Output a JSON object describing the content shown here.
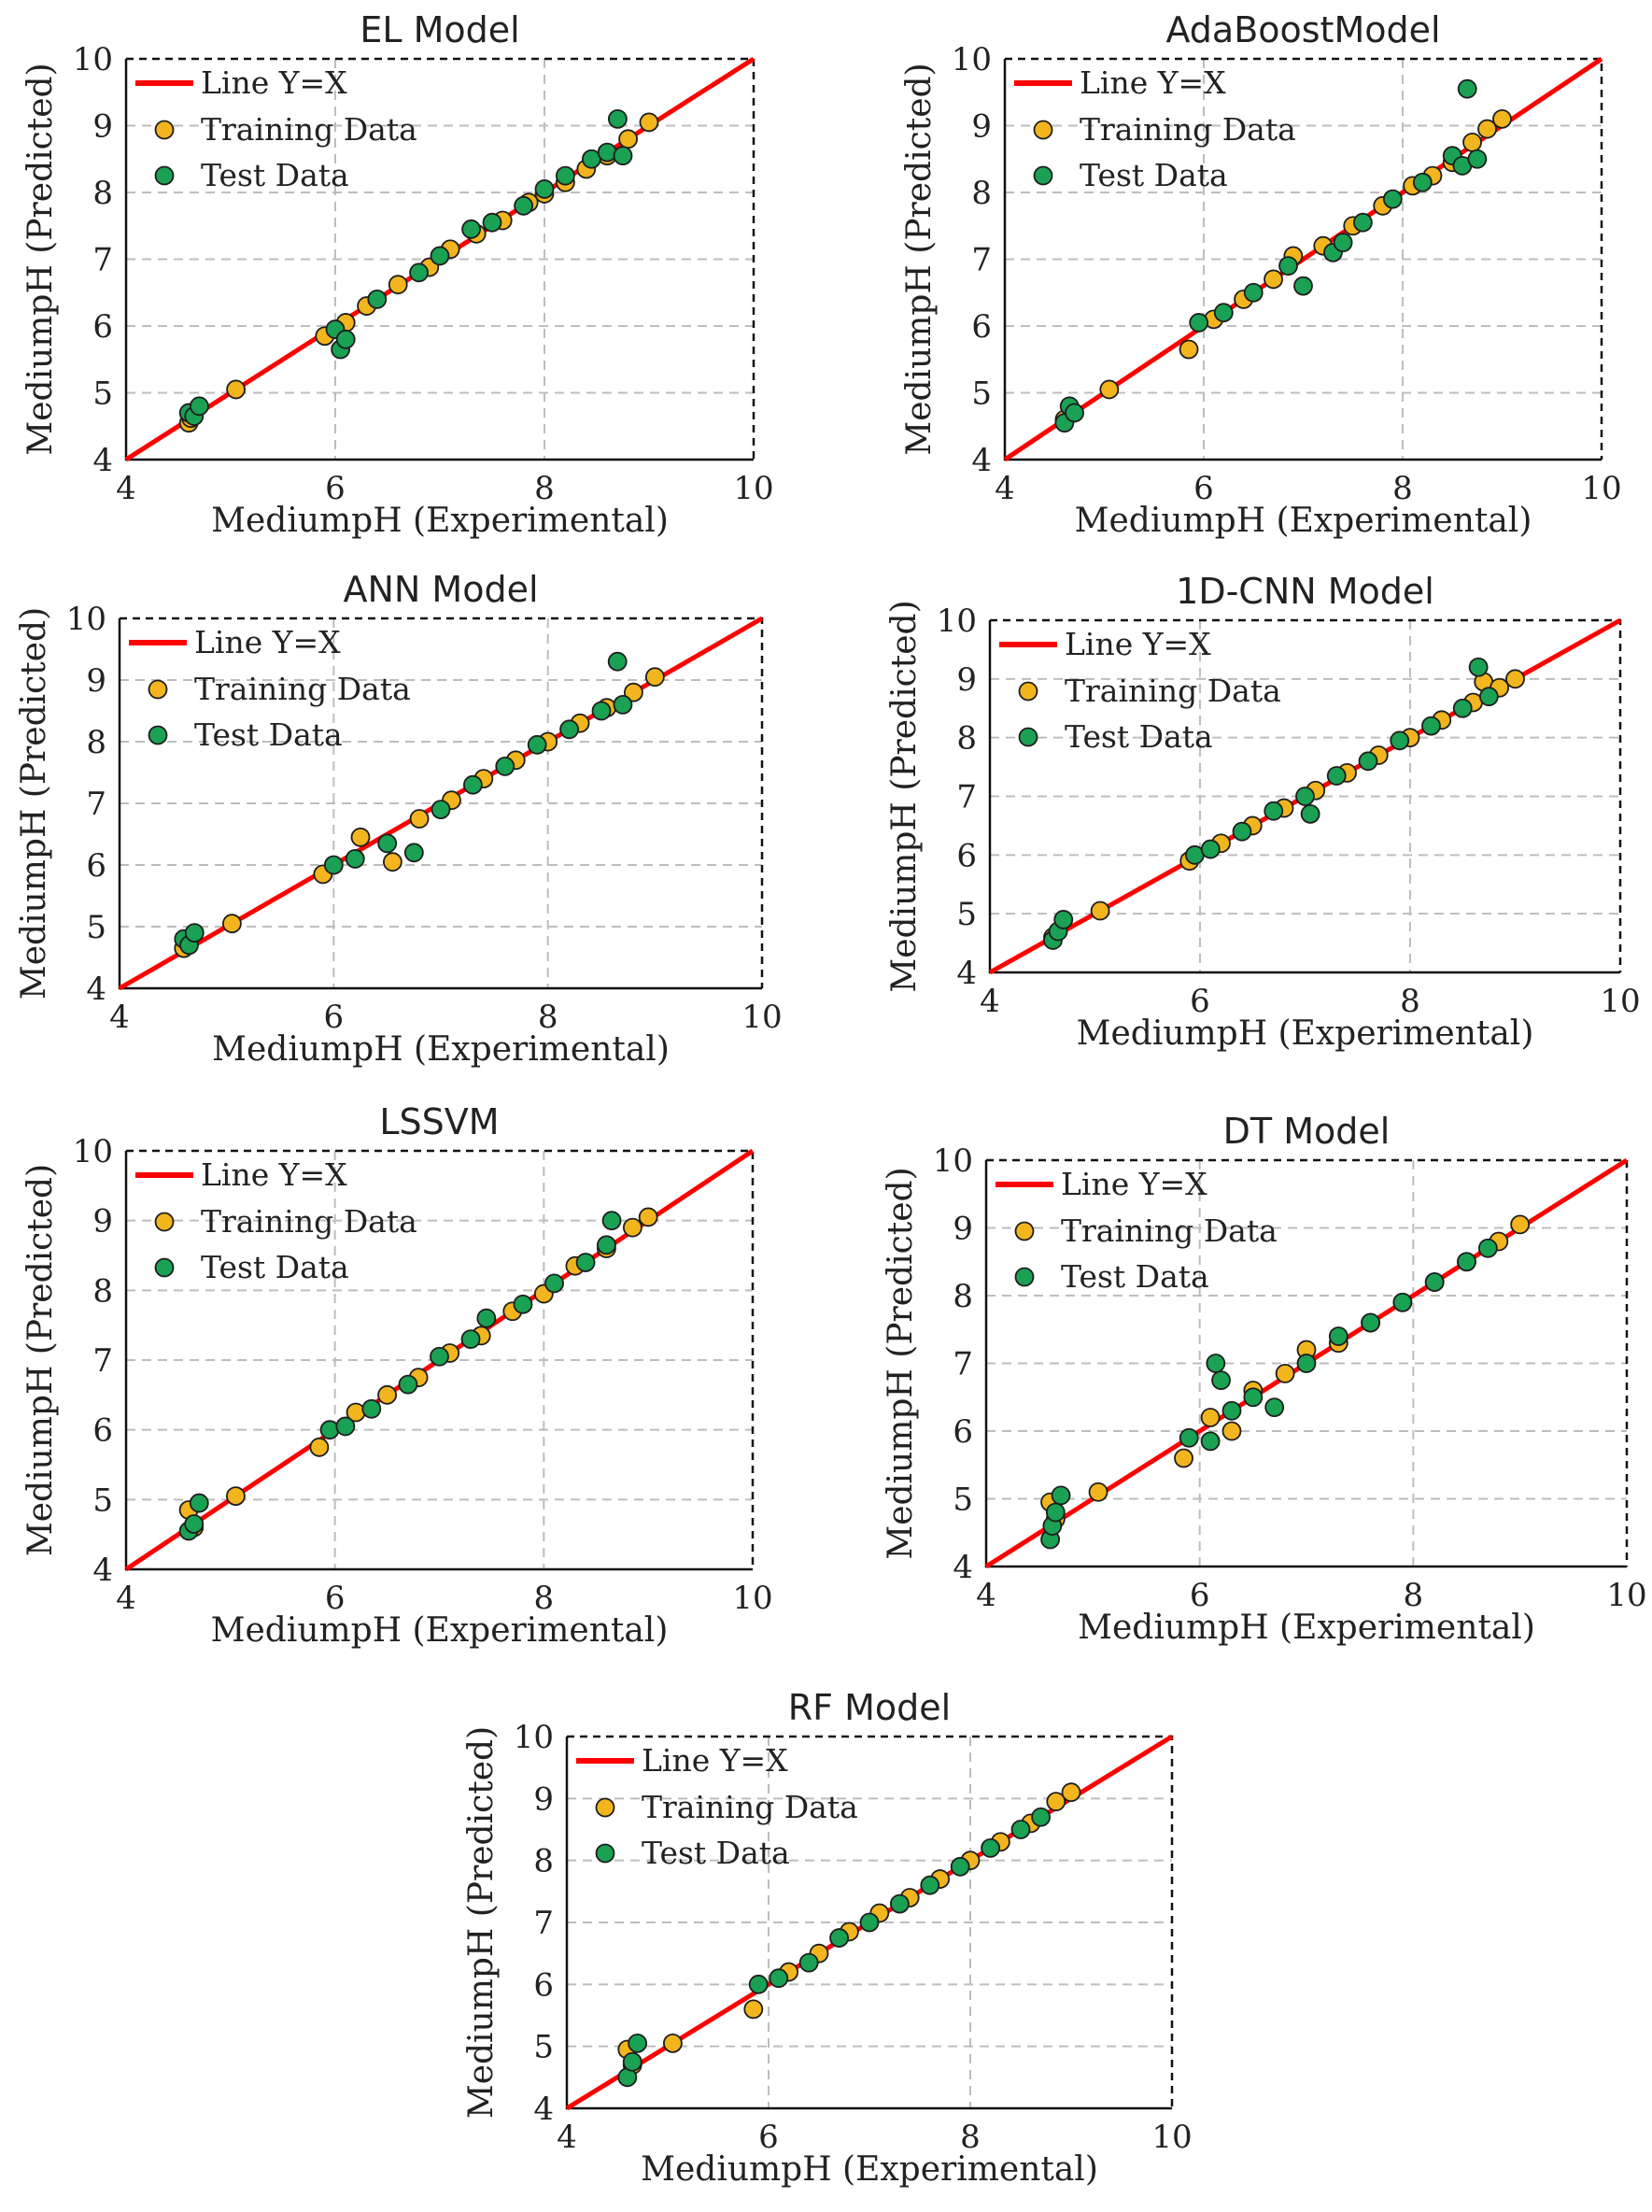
{
  "chart_data": [
    {
      "type": "scatter",
      "title": "EL Model",
      "xlabel": "MediumpH (Experimental)",
      "ylabel": "MediumpH (Predicted)",
      "xlim": [
        4,
        10
      ],
      "ylim": [
        4,
        10
      ],
      "xticks": [
        "4",
        "6",
        "8",
        "10"
      ],
      "yticks": [
        "4",
        "5",
        "6",
        "7",
        "8",
        "9",
        "10"
      ],
      "grid": true,
      "legend_position": "top-left",
      "line": {
        "name": "Line Y=X",
        "color": "#ff0000"
      },
      "series": [
        {
          "name": "Training Data",
          "color": "#f2b51d",
          "x": [
            4.6,
            4.62,
            5.05,
            5.9,
            6.1,
            6.3,
            6.6,
            6.9,
            7.1,
            7.35,
            7.6,
            7.85,
            8.0,
            8.2,
            8.4,
            8.6,
            8.8,
            9.0
          ],
          "y": [
            4.55,
            4.62,
            5.05,
            5.85,
            6.05,
            6.3,
            6.62,
            6.88,
            7.15,
            7.38,
            7.58,
            7.85,
            7.98,
            8.15,
            8.35,
            8.55,
            8.8,
            9.05
          ]
        },
        {
          "name": "Test Data",
          "color": "#1aa153",
          "x": [
            4.6,
            4.65,
            4.7,
            6.0,
            6.05,
            6.1,
            6.4,
            6.8,
            7.0,
            7.3,
            7.5,
            7.8,
            8.0,
            8.2,
            8.45,
            8.6,
            8.7,
            8.75
          ],
          "y": [
            4.7,
            4.65,
            4.8,
            5.95,
            5.65,
            5.8,
            6.4,
            6.8,
            7.05,
            7.45,
            7.55,
            7.8,
            8.05,
            8.25,
            8.5,
            8.6,
            9.1,
            8.55
          ]
        }
      ]
    },
    {
      "type": "scatter",
      "title": "AdaBoostModel",
      "xlabel": "MediumpH (Experimental)",
      "ylabel": "MediumpH (Predicted)",
      "xlim": [
        4,
        10
      ],
      "ylim": [
        4,
        10
      ],
      "xticks": [
        "4",
        "6",
        "8",
        "10"
      ],
      "yticks": [
        "4",
        "5",
        "6",
        "7",
        "8",
        "9",
        "10"
      ],
      "grid": true,
      "legend_position": "top-left",
      "line": {
        "name": "Line Y=X",
        "color": "#ff0000"
      },
      "series": [
        {
          "name": "Training Data",
          "color": "#f2b51d",
          "x": [
            4.6,
            5.05,
            5.85,
            6.1,
            6.4,
            6.7,
            6.9,
            7.2,
            7.5,
            7.8,
            8.1,
            8.3,
            8.5,
            8.7,
            8.85,
            9.0
          ],
          "y": [
            4.6,
            5.05,
            5.65,
            6.1,
            6.4,
            6.7,
            7.05,
            7.2,
            7.5,
            7.8,
            8.1,
            8.25,
            8.45,
            8.75,
            8.95,
            9.1
          ]
        },
        {
          "name": "Test Data",
          "color": "#1aa153",
          "x": [
            4.6,
            4.65,
            4.7,
            5.95,
            6.2,
            6.5,
            6.85,
            7.0,
            7.3,
            7.4,
            7.6,
            7.9,
            8.2,
            8.5,
            8.6,
            8.65,
            8.75
          ],
          "y": [
            4.55,
            4.8,
            4.7,
            6.05,
            6.2,
            6.5,
            6.9,
            6.6,
            7.1,
            7.25,
            7.55,
            7.9,
            8.15,
            8.55,
            8.4,
            9.55,
            8.5
          ]
        }
      ]
    },
    {
      "type": "scatter",
      "title": "ANN Model",
      "xlabel": "MediumpH (Experimental)",
      "ylabel": "MediumpH (Predicted)",
      "xlim": [
        4,
        10
      ],
      "ylim": [
        4,
        10
      ],
      "xticks": [
        "4",
        "6",
        "8",
        "10"
      ],
      "yticks": [
        "4",
        "5",
        "6",
        "7",
        "8",
        "9",
        "10"
      ],
      "grid": true,
      "legend_position": "top-left",
      "line": {
        "name": "Line Y=X",
        "color": "#ff0000"
      },
      "series": [
        {
          "name": "Training Data",
          "color": "#f2b51d",
          "x": [
            4.6,
            5.05,
            5.9,
            6.25,
            6.55,
            6.8,
            7.1,
            7.4,
            7.7,
            8.0,
            8.3,
            8.55,
            8.8,
            9.0
          ],
          "y": [
            4.65,
            5.05,
            5.85,
            6.45,
            6.05,
            6.75,
            7.05,
            7.4,
            7.7,
            8.0,
            8.3,
            8.55,
            8.8,
            9.05
          ]
        },
        {
          "name": "Test Data",
          "color": "#1aa153",
          "x": [
            4.6,
            4.65,
            4.7,
            6.0,
            6.2,
            6.5,
            6.75,
            7.0,
            7.3,
            7.6,
            7.9,
            8.2,
            8.5,
            8.65,
            8.7
          ],
          "y": [
            4.8,
            4.7,
            4.9,
            6.0,
            6.1,
            6.35,
            6.2,
            6.9,
            7.3,
            7.6,
            7.95,
            8.2,
            8.5,
            9.3,
            8.6
          ]
        }
      ]
    },
    {
      "type": "scatter",
      "title": "1D-CNN Model",
      "xlabel": "MediumpH (Experimental)",
      "ylabel": "MediumpH (Predicted)",
      "xlim": [
        4,
        10
      ],
      "ylim": [
        4,
        10
      ],
      "xticks": [
        "4",
        "6",
        "8",
        "10"
      ],
      "yticks": [
        "4",
        "5",
        "6",
        "7",
        "8",
        "9",
        "10"
      ],
      "grid": true,
      "legend_position": "top-left",
      "line": {
        "name": "Line Y=X",
        "color": "#ff0000"
      },
      "series": [
        {
          "name": "Training Data",
          "color": "#f2b51d",
          "x": [
            4.6,
            5.05,
            5.9,
            6.2,
            6.5,
            6.8,
            7.1,
            7.4,
            7.7,
            8.0,
            8.3,
            8.6,
            8.7,
            8.85,
            9.0
          ],
          "y": [
            4.6,
            5.05,
            5.9,
            6.2,
            6.5,
            6.8,
            7.1,
            7.4,
            7.7,
            8.0,
            8.3,
            8.6,
            8.95,
            8.85,
            9.0
          ]
        },
        {
          "name": "Test Data",
          "color": "#1aa153",
          "x": [
            4.6,
            4.65,
            4.7,
            5.95,
            6.1,
            6.4,
            6.7,
            7.0,
            7.05,
            7.3,
            7.6,
            7.9,
            8.2,
            8.5,
            8.65,
            8.75
          ],
          "y": [
            4.55,
            4.7,
            4.9,
            6.0,
            6.1,
            6.4,
            6.75,
            7.0,
            6.7,
            7.35,
            7.6,
            7.95,
            8.2,
            8.5,
            9.2,
            8.7
          ]
        }
      ]
    },
    {
      "type": "scatter",
      "title": "LSSVM",
      "xlabel": "MediumpH (Experimental)",
      "ylabel": "MediumpH (Predicted)",
      "xlim": [
        4,
        10
      ],
      "ylim": [
        4,
        10
      ],
      "xticks": [
        "4",
        "6",
        "8",
        "10"
      ],
      "yticks": [
        "4",
        "5",
        "6",
        "7",
        "8",
        "9",
        "10"
      ],
      "grid": true,
      "legend_position": "top-left",
      "line": {
        "name": "Line Y=X",
        "color": "#ff0000"
      },
      "series": [
        {
          "name": "Training Data",
          "color": "#f2b51d",
          "x": [
            4.6,
            4.65,
            5.05,
            5.85,
            6.2,
            6.5,
            6.8,
            7.1,
            7.4,
            7.7,
            8.0,
            8.3,
            8.6,
            8.85,
            9.0
          ],
          "y": [
            4.85,
            4.6,
            5.05,
            5.75,
            6.25,
            6.5,
            6.75,
            7.1,
            7.35,
            7.7,
            7.95,
            8.35,
            8.6,
            8.9,
            9.05
          ]
        },
        {
          "name": "Test Data",
          "color": "#1aa153",
          "x": [
            4.6,
            4.65,
            4.7,
            5.95,
            6.1,
            6.35,
            6.7,
            7.0,
            7.3,
            7.45,
            7.8,
            8.1,
            8.4,
            8.6,
            8.65
          ],
          "y": [
            4.55,
            4.65,
            4.95,
            6.0,
            6.05,
            6.3,
            6.65,
            7.05,
            7.3,
            7.6,
            7.8,
            8.1,
            8.4,
            8.65,
            9.0
          ]
        }
      ]
    },
    {
      "type": "scatter",
      "title": "DT Model",
      "xlabel": "MediumpH (Experimental)",
      "ylabel": "MediumpH (Predicted)",
      "xlim": [
        4,
        10
      ],
      "ylim": [
        4,
        10
      ],
      "xticks": [
        "4",
        "6",
        "8",
        "10"
      ],
      "yticks": [
        "4",
        "5",
        "6",
        "7",
        "8",
        "9",
        "10"
      ],
      "grid": true,
      "legend_position": "top-left",
      "line": {
        "name": "Line Y=X",
        "color": "#ff0000"
      },
      "series": [
        {
          "name": "Training Data",
          "color": "#f2b51d",
          "x": [
            4.6,
            4.65,
            5.05,
            5.85,
            6.1,
            6.3,
            6.5,
            6.8,
            7.0,
            7.3,
            7.6,
            7.9,
            8.2,
            8.5,
            8.8,
            9.0
          ],
          "y": [
            4.95,
            4.7,
            5.1,
            5.6,
            6.2,
            6.0,
            6.6,
            6.85,
            7.2,
            7.3,
            7.6,
            7.9,
            8.2,
            8.5,
            8.8,
            9.05
          ]
        },
        {
          "name": "Test Data",
          "color": "#1aa153",
          "x": [
            4.6,
            4.62,
            4.65,
            4.7,
            5.9,
            6.1,
            6.15,
            6.2,
            6.3,
            6.5,
            6.7,
            7.0,
            7.3,
            7.6,
            7.9,
            8.2,
            8.5,
            8.7
          ],
          "y": [
            4.4,
            4.6,
            4.8,
            5.05,
            5.9,
            5.85,
            7.0,
            6.75,
            6.3,
            6.5,
            6.35,
            7.0,
            7.4,
            7.6,
            7.9,
            8.2,
            8.5,
            8.7
          ]
        }
      ]
    },
    {
      "type": "scatter",
      "title": "RF Model",
      "xlabel": "MediumpH (Experimental)",
      "ylabel": "MediumpH (Predicted)",
      "xlim": [
        4,
        10
      ],
      "ylim": [
        4,
        10
      ],
      "xticks": [
        "4",
        "6",
        "8",
        "10"
      ],
      "yticks": [
        "4",
        "5",
        "6",
        "7",
        "8",
        "9",
        "10"
      ],
      "grid": true,
      "legend_position": "top-left",
      "line": {
        "name": "Line Y=X",
        "color": "#ff0000"
      },
      "series": [
        {
          "name": "Training Data",
          "color": "#f2b51d",
          "x": [
            4.6,
            4.65,
            5.05,
            5.85,
            6.2,
            6.5,
            6.8,
            7.1,
            7.4,
            7.7,
            8.0,
            8.3,
            8.6,
            8.85,
            9.0
          ],
          "y": [
            4.95,
            4.7,
            5.05,
            5.6,
            6.2,
            6.5,
            6.85,
            7.15,
            7.4,
            7.7,
            8.0,
            8.3,
            8.6,
            8.95,
            9.1
          ]
        },
        {
          "name": "Test Data",
          "color": "#1aa153",
          "x": [
            4.6,
            4.65,
            4.7,
            5.9,
            6.1,
            6.4,
            6.7,
            7.0,
            7.3,
            7.6,
            7.9,
            8.2,
            8.5,
            8.7
          ],
          "y": [
            4.5,
            4.75,
            5.05,
            6.0,
            6.1,
            6.35,
            6.75,
            7.0,
            7.3,
            7.6,
            7.9,
            8.2,
            8.5,
            8.7
          ]
        }
      ]
    }
  ]
}
